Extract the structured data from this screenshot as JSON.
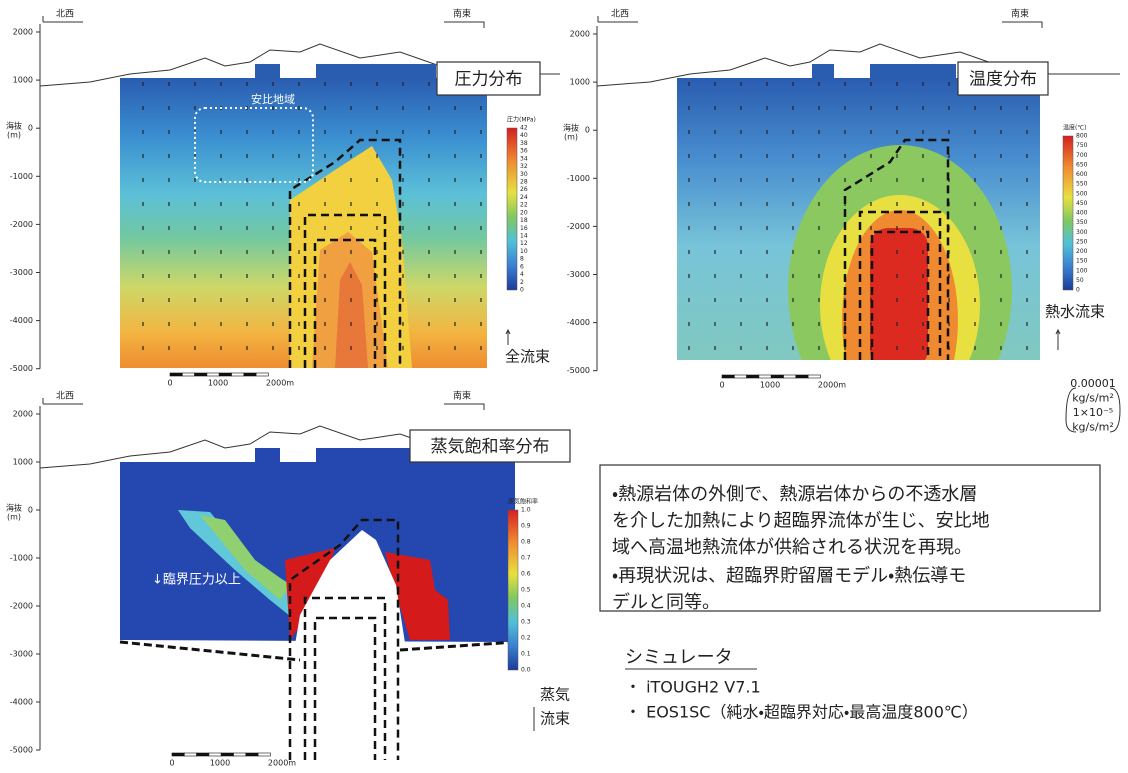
{
  "panels": [
    {
      "title": "圧力分布",
      "left_label": "北西",
      "right_label": "南東",
      "y_label": [
        "海抜",
        "(m)"
      ],
      "y_ticks": [
        "2000",
        "1000",
        "0",
        "-1000",
        "-2000",
        "-3000",
        "-4000",
        "-5000"
      ],
      "colorbar": {
        "label": "圧力(MPa)",
        "ticks": [
          "42",
          "40",
          "38",
          "36",
          "34",
          "32",
          "30",
          "28",
          "26",
          "24",
          "22",
          "20",
          "18",
          "16",
          "14",
          "12",
          "10",
          "8",
          "6",
          "4",
          "2",
          "0"
        ]
      },
      "scale_labels": [
        "0",
        "1000",
        "2000m"
      ],
      "flux_label": [
        "全流束"
      ],
      "region_label": "安比地域"
    },
    {
      "title": "温度分布",
      "left_label": "北西",
      "right_label": "南東",
      "y_label": [
        "海抜",
        "(m)"
      ],
      "y_ticks": [
        "2000",
        "1000",
        "0",
        "-1000",
        "-2000",
        "-3000",
        "-4000",
        "-5000"
      ],
      "colorbar": {
        "label": "温度(℃)",
        "ticks": [
          "800",
          "750",
          "700",
          "650",
          "600",
          "550",
          "500",
          "450",
          "400",
          "350",
          "300",
          "250",
          "200",
          "150",
          "100",
          "50",
          "0"
        ]
      },
      "scale_labels": [
        "0",
        "1000",
        "2000m"
      ],
      "flux_label": [
        "熱水流束"
      ]
    },
    {
      "title": "蒸気飽和率分布",
      "left_label": "北西",
      "right_label": "南東",
      "y_label": [
        "海抜",
        "(m)"
      ],
      "y_ticks": [
        "2000",
        "1000",
        "0",
        "-1000",
        "-2000",
        "-3000",
        "-4000",
        "-5000"
      ],
      "colorbar": {
        "label": "蒸気飽和率",
        "ticks": [
          "1.0",
          "0.9",
          "0.8",
          "0.7",
          "0.6",
          "0.5",
          "0.4",
          "0.3",
          "0.2",
          "0.1",
          "0.0"
        ]
      },
      "scale_labels": [
        "0",
        "1000",
        "2000m"
      ],
      "flux_label": [
        "蒸気",
        "流束"
      ],
      "critical_label": "↓臨界圧力以上"
    }
  ],
  "flux_unit": [
    "0.00001",
    "kg/s/m²",
    "1×10⁻⁵",
    "kg/s/m²"
  ],
  "description": {
    "paragraphs": [
      [
        "・熱源岩体の外側で、熱源岩体からの不透水層",
        "を介した加熱により超臨界流体が生じ、安比地",
        "域へ高温地熱流体が供給される状況を再現。"
      ],
      [
        "・再現状況は、超臨界貯留層モデル・熱伝導モ",
        "デルと同等。"
      ]
    ]
  },
  "simulator": {
    "heading": "シミュレータ",
    "items": [
      "・ iTOUGH2 V7.1",
      "・ EOS1SC（純水・超臨界対応・最高温度800℃）"
    ]
  }
}
